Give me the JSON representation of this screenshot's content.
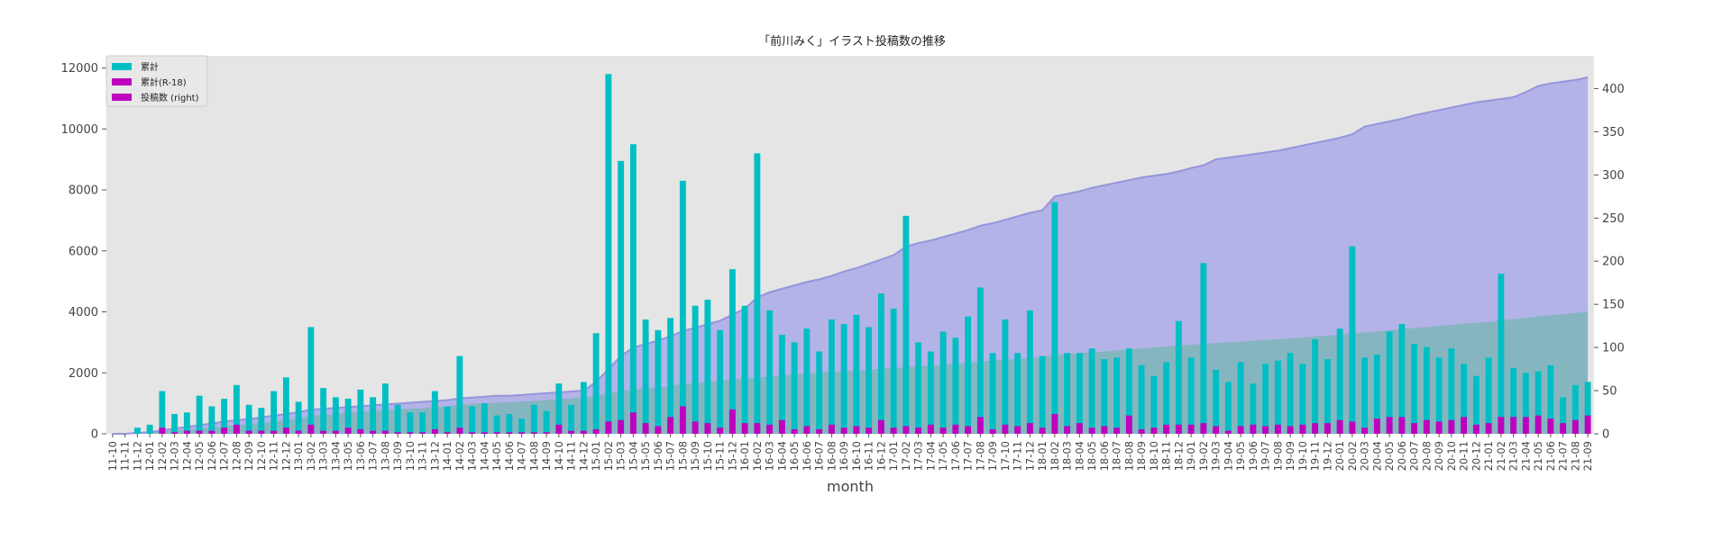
{
  "chart_data": {
    "type": "bar",
    "title": "「前川みく」イラスト投稿数の推移",
    "xlabel": "month",
    "ylabel": "",
    "ylim": [
      0,
      12400
    ],
    "y2lim": [
      0,
      438
    ],
    "yticks": [
      0,
      2000,
      4000,
      6000,
      8000,
      10000,
      12000
    ],
    "y2ticks": [
      0,
      50,
      100,
      150,
      200,
      250,
      300,
      350,
      400
    ],
    "grid": false,
    "legend_position": "top-left",
    "colors": {
      "cumulative": "#00bfc4",
      "cumulative_r18": "#bf00bf",
      "posts": "#bf00bf",
      "area_fill": "#b3b3e8",
      "area_line": "#9595dd",
      "green_area": "#5fb89e",
      "plot_bg": "#e5e5e5"
    },
    "categories": [
      "11-10",
      "11-11",
      "11-12",
      "12-01",
      "12-02",
      "12-03",
      "12-04",
      "12-05",
      "12-06",
      "12-07",
      "12-08",
      "12-09",
      "12-10",
      "12-11",
      "12-12",
      "13-01",
      "13-02",
      "13-03",
      "13-04",
      "13-05",
      "13-06",
      "13-07",
      "13-08",
      "13-09",
      "13-10",
      "13-11",
      "13-12",
      "14-01",
      "14-02",
      "14-03",
      "14-04",
      "14-05",
      "14-06",
      "14-07",
      "14-08",
      "14-09",
      "14-10",
      "14-11",
      "14-12",
      "15-01",
      "15-02",
      "15-03",
      "15-04",
      "15-05",
      "15-06",
      "15-07",
      "15-08",
      "15-09",
      "15-10",
      "15-11",
      "15-12",
      "16-01",
      "16-02",
      "16-03",
      "16-04",
      "16-05",
      "16-06",
      "16-07",
      "16-08",
      "16-09",
      "16-10",
      "16-11",
      "16-12",
      "17-01",
      "17-02",
      "17-03",
      "17-04",
      "17-05",
      "17-06",
      "17-07",
      "17-08",
      "17-09",
      "17-10",
      "17-11",
      "17-12",
      "18-01",
      "18-02",
      "18-03",
      "18-04",
      "18-05",
      "18-06",
      "18-07",
      "18-08",
      "18-09",
      "18-10",
      "18-11",
      "18-12",
      "19-01",
      "19-02",
      "19-03",
      "19-04",
      "19-05",
      "19-06",
      "19-07",
      "19-08",
      "19-09",
      "19-10",
      "19-11",
      "19-12",
      "20-01",
      "20-02",
      "20-03",
      "20-04",
      "20-05",
      "20-06",
      "20-07",
      "20-08",
      "20-09",
      "20-10",
      "20-11",
      "20-12",
      "21-01",
      "21-02",
      "21-03",
      "21-04",
      "21-05",
      "21-06",
      "21-07",
      "21-08",
      "21-09"
    ],
    "series": [
      {
        "name": "累計",
        "axis": "left",
        "render": "bar",
        "values": [
          0,
          0,
          200,
          300,
          1400,
          650,
          700,
          1250,
          900,
          1150,
          1600,
          950,
          850,
          1400,
          1850,
          1050,
          3500,
          1500,
          1200,
          1150,
          1450,
          1200,
          1650,
          950,
          700,
          700,
          1400,
          900,
          2550,
          900,
          1000,
          600,
          650,
          500,
          950,
          750,
          1650,
          950,
          1700,
          3300,
          11800,
          8950,
          9500,
          3750,
          3400,
          3800,
          8300,
          4200,
          4400,
          3400,
          5400,
          4200,
          9200,
          4050,
          3250,
          3000,
          3450,
          2700,
          3750,
          3600,
          3900,
          3500,
          4600,
          4100,
          7150,
          3000,
          2700,
          3350,
          3150,
          3850,
          4800,
          2650,
          3750,
          2650,
          4050,
          2550,
          7600,
          2650,
          2650,
          2800,
          2450,
          2500,
          2800,
          2250,
          1900,
          2350,
          3700,
          2500,
          5600,
          2100,
          1700,
          2350,
          1650,
          2300,
          2400,
          2650,
          2300,
          3100,
          2450,
          3450,
          6150,
          2500,
          2600,
          3350,
          3600,
          2950,
          2850,
          2500,
          2800,
          2300,
          1900,
          2500,
          5250,
          2150,
          2000,
          2050,
          2250,
          1200,
          1600,
          1700
        ]
      },
      {
        "name": "累計(R-18)",
        "axis": "left",
        "render": "bar",
        "values": [
          0,
          0,
          0,
          0,
          200,
          50,
          100,
          100,
          100,
          200,
          300,
          100,
          100,
          100,
          200,
          100,
          300,
          100,
          100,
          200,
          150,
          100,
          100,
          50,
          50,
          50,
          150,
          50,
          200,
          50,
          50,
          50,
          50,
          50,
          50,
          50,
          300,
          100,
          100,
          150,
          400,
          450,
          700,
          350,
          250,
          550,
          900,
          400,
          350,
          200,
          800,
          350,
          350,
          300,
          450,
          150,
          250,
          150,
          300,
          200,
          250,
          200,
          450,
          200,
          250,
          200,
          300,
          200,
          300,
          250,
          550,
          150,
          300,
          250,
          350,
          200,
          650,
          250,
          350,
          200,
          250,
          200,
          600,
          150,
          200,
          300,
          300,
          300,
          350,
          250,
          100,
          250,
          300,
          250,
          300,
          250,
          300,
          350,
          350,
          450,
          400,
          200,
          500,
          550,
          550,
          350,
          450,
          400,
          450,
          550,
          300,
          350,
          550,
          550,
          550,
          600,
          500,
          350,
          450,
          600
        ]
      },
      {
        "name": "投稿数 (right)",
        "axis": "right",
        "render": "area",
        "values": [
          0,
          0,
          1,
          2,
          4,
          6,
          8,
          10,
          12,
          14,
          16,
          17,
          19,
          21,
          23,
          25,
          28,
          29,
          30,
          31,
          32,
          33,
          34,
          35,
          36,
          37,
          38,
          39,
          41,
          42,
          43,
          44,
          44,
          45,
          46,
          47,
          48,
          49,
          50,
          60,
          75,
          90,
          100,
          104,
          108,
          113,
          119,
          123,
          127,
          131,
          138,
          145,
          158,
          164,
          168,
          172,
          176,
          179,
          183,
          188,
          192,
          197,
          202,
          207,
          217,
          221,
          224,
          228,
          232,
          236,
          241,
          244,
          248,
          252,
          256,
          259,
          275,
          278,
          281,
          285,
          288,
          291,
          294,
          297,
          299,
          301,
          304,
          308,
          311,
          318,
          320,
          322,
          324,
          326,
          328,
          331,
          334,
          337,
          340,
          343,
          347,
          356,
          359,
          362,
          365,
          369,
          372,
          375,
          378,
          381,
          384,
          386,
          388,
          390,
          396,
          403,
          406,
          408,
          410,
          413
        ]
      },
      {
        "name": "",
        "axis": "left",
        "render": "area",
        "values": [
          0,
          0,
          6,
          15,
          86,
          107,
          129,
          171,
          197,
          243,
          292,
          319,
          345,
          389,
          455,
          490,
          599,
          625,
          650,
          690,
          725,
          750,
          780,
          800,
          825,
          840,
          880,
          900,
          960,
          980,
          1000,
          1020,
          1040,
          1060,
          1080,
          1100,
          1140,
          1160,
          1180,
          1260,
          1320,
          1400,
          1460,
          1500,
          1520,
          1560,
          1640,
          1670,
          1700,
          1730,
          1790,
          1820,
          1850,
          1880,
          1920,
          1950,
          1980,
          2010,
          2030,
          2050,
          2080,
          2100,
          2140,
          2160,
          2180,
          2210,
          2240,
          2270,
          2300,
          2330,
          2380,
          2400,
          2430,
          2460,
          2490,
          2520,
          2590,
          2620,
          2650,
          2680,
          2700,
          2730,
          2780,
          2800,
          2830,
          2860,
          2890,
          2920,
          2950,
          2980,
          3000,
          3020,
          3050,
          3080,
          3100,
          3130,
          3160,
          3190,
          3220,
          3260,
          3300,
          3320,
          3360,
          3400,
          3440,
          3470,
          3500,
          3540,
          3570,
          3620,
          3640,
          3670,
          3720,
          3760,
          3800,
          3850,
          3890,
          3920,
          3960,
          4020
        ]
      }
    ]
  }
}
